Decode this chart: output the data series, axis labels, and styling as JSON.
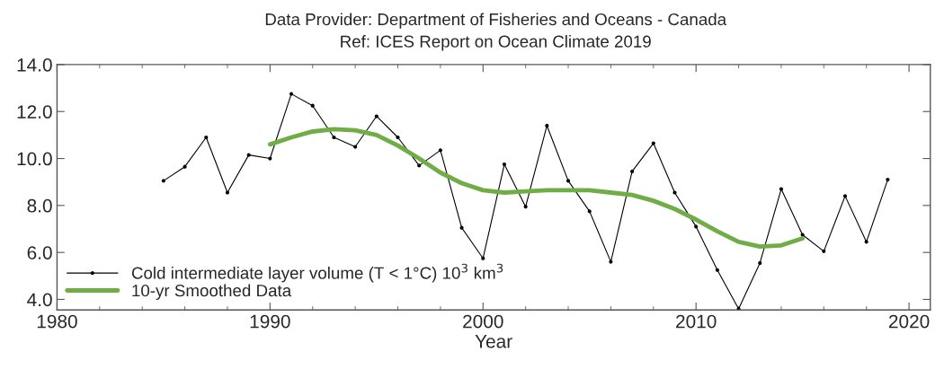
{
  "chart_data": {
    "type": "line",
    "title": "Data Provider: Department of Fisheries and Oceans - Canada",
    "subtitle": "Ref: ICES Report on Ocean Climate 2019",
    "xlabel": "Year",
    "xlim": [
      1980,
      2021
    ],
    "xticks": [
      1980,
      1990,
      2000,
      2010,
      2020
    ],
    "ylim": [
      3.55,
      14.0
    ],
    "yticks": [
      {
        "value": 4,
        "label": "4.0"
      },
      {
        "value": 6,
        "label": "6.0"
      },
      {
        "value": 8,
        "label": "8.0"
      },
      {
        "value": 10,
        "label": "10.0"
      },
      {
        "value": 12,
        "label": "12.0"
      },
      {
        "value": 14,
        "label": "14.0"
      }
    ],
    "grid": false,
    "legend": "bottom left",
    "series": [
      {
        "name": "Cold intermediate layer volume (T < 1°C) 10$^{3}$ km$^{3}$",
        "color": "#000000",
        "marker": "circle",
        "line_style": "solid",
        "x": [
          1985,
          1986,
          1987,
          1988,
          1989,
          1990,
          1991,
          1992,
          1993,
          1994,
          1995,
          1996,
          1997,
          1998,
          1999,
          2000,
          2001,
          2002,
          2003,
          2004,
          2005,
          2006,
          2007,
          2008,
          2009,
          2010,
          2011,
          2012,
          2013,
          2014,
          2015,
          2016,
          2017,
          2018,
          2019
        ],
        "values": [
          9.05,
          9.65,
          10.9,
          8.55,
          10.15,
          10.0,
          12.75,
          12.25,
          10.9,
          10.5,
          11.8,
          10.9,
          9.7,
          10.35,
          7.05,
          5.75,
          9.75,
          7.95,
          11.4,
          9.05,
          7.75,
          5.6,
          9.45,
          10.65,
          8.55,
          7.1,
          5.25,
          3.6,
          5.55,
          8.7,
          6.75,
          6.05,
          8.4,
          6.45,
          9.1
        ]
      },
      {
        "name": "10-yr Smoothed Data",
        "color": "#70ad47",
        "marker": "none",
        "line_style": "solid",
        "x": [
          1990,
          1991,
          1992,
          1993,
          1994,
          1995,
          1996,
          1997,
          1998,
          1999,
          2000,
          2001,
          2002,
          2003,
          2004,
          2005,
          2006,
          2007,
          2008,
          2009,
          2010,
          2011,
          2012,
          2013,
          2014,
          2015
        ],
        "values": [
          10.6,
          10.9,
          11.15,
          11.25,
          11.2,
          11.0,
          10.55,
          10.0,
          9.4,
          8.95,
          8.65,
          8.55,
          8.6,
          8.65,
          8.65,
          8.65,
          8.55,
          8.45,
          8.2,
          7.85,
          7.4,
          6.9,
          6.45,
          6.25,
          6.3,
          6.6
        ]
      }
    ]
  }
}
